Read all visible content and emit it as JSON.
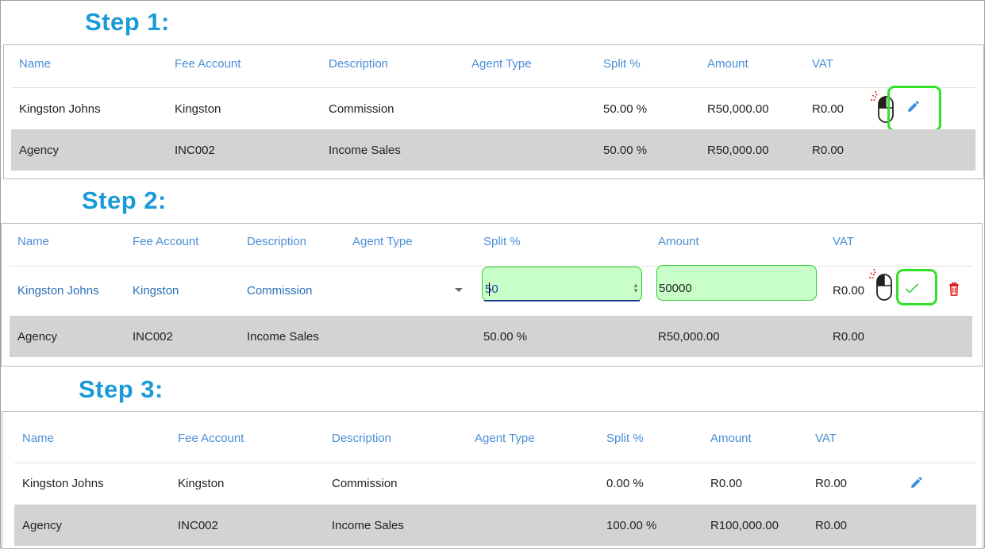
{
  "columns": [
    "Name",
    "Fee Account",
    "Description",
    "Agent Type",
    "Split %",
    "Amount",
    "VAT"
  ],
  "step1": {
    "title": "Step 1:",
    "rows": [
      {
        "name": "Kingston Johns",
        "fee_account": "Kingston",
        "description": "Commission",
        "agent_type": "",
        "split": "50.00 %",
        "amount": "R50,000.00",
        "vat": "R0.00"
      },
      {
        "name": "Agency",
        "fee_account": "INC002",
        "description": "Income Sales",
        "agent_type": "",
        "split": "50.00 %",
        "amount": "R50,000.00",
        "vat": "R0.00"
      }
    ]
  },
  "step2": {
    "title": "Step 2:",
    "edit_row": {
      "name": "Kingston Johns",
      "fee_account": "Kingston",
      "description": "Commission",
      "split_input": "50",
      "amount_input": "50000",
      "vat": "R0.00"
    },
    "row": {
      "name": "Agency",
      "fee_account": "INC002",
      "description": "Income Sales",
      "agent_type": "",
      "split": "50.00 %",
      "amount": "R50,000.00",
      "vat": "R0.00"
    }
  },
  "step3": {
    "title": "Step 3:",
    "rows": [
      {
        "name": "Kingston Johns",
        "fee_account": "Kingston",
        "description": "Commission",
        "agent_type": "",
        "split": "0.00 %",
        "amount": "R0.00",
        "vat": "R0.00"
      },
      {
        "name": "Agency",
        "fee_account": "INC002",
        "description": "Income Sales",
        "agent_type": "",
        "split": "100.00 %",
        "amount": "R100,000.00",
        "vat": "R0.00"
      }
    ]
  },
  "colors": {
    "accent": "#1a9ad6",
    "header_text": "#4a8ed6",
    "highlight": "#33e02a",
    "input_fill": "#c8ffc8",
    "delete": "#e02020",
    "row_gray": "#d3d3d3"
  },
  "icons": [
    "pencil-icon",
    "check-icon",
    "trash-icon",
    "mouse-click-icon",
    "dropdown-arrow-icon"
  ]
}
